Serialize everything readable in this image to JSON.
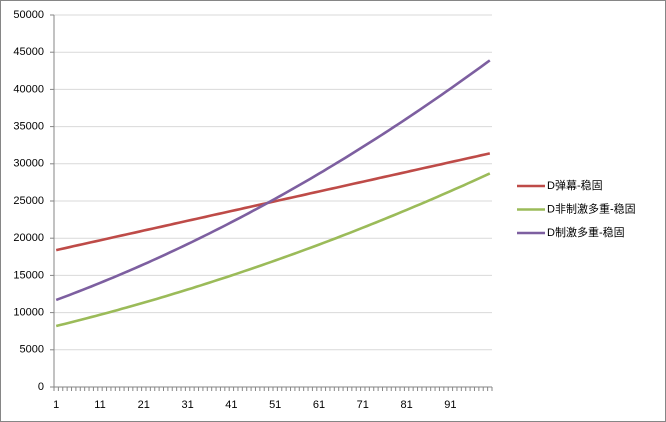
{
  "chart_data": {
    "type": "line",
    "categories": [
      1,
      null,
      null,
      null,
      null,
      null,
      null,
      null,
      null,
      null,
      11,
      null,
      null,
      null,
      null,
      null,
      null,
      null,
      null,
      null,
      21,
      null,
      null,
      null,
      null,
      null,
      null,
      null,
      null,
      null,
      31,
      null,
      null,
      null,
      null,
      null,
      null,
      null,
      null,
      null,
      41,
      null,
      null,
      null,
      null,
      null,
      null,
      null,
      null,
      null,
      51,
      null,
      null,
      null,
      null,
      null,
      null,
      null,
      null,
      null,
      61,
      null,
      null,
      null,
      null,
      null,
      null,
      null,
      null,
      null,
      71,
      null,
      null,
      null,
      null,
      null,
      null,
      null,
      null,
      null,
      81,
      null,
      null,
      null,
      null,
      null,
      null,
      null,
      null,
      null,
      91,
      null,
      null,
      null,
      null,
      null,
      null,
      null,
      null,
      null
    ],
    "series": [
      {
        "name": "D弹幕-稳固",
        "color": "#be4b48",
        "values": [
          18400,
          18530,
          18660,
          18790,
          18930,
          19060,
          19190,
          19320,
          19450,
          19580,
          19710,
          19840,
          19980,
          20110,
          20240,
          20370,
          20500,
          20630,
          20760,
          20890,
          21030,
          21160,
          21290,
          21420,
          21550,
          21680,
          21810,
          21950,
          22080,
          22210,
          22340,
          22470,
          22600,
          22730,
          22860,
          23000,
          23130,
          23260,
          23390,
          23520,
          23650,
          23780,
          23910,
          24050,
          24180,
          24310,
          24440,
          24570,
          24700,
          24830,
          24970,
          25100,
          25230,
          25360,
          25490,
          25620,
          25750,
          25880,
          26020,
          26150,
          26280,
          26410,
          26540,
          26670,
          26800,
          26930,
          27070,
          27200,
          27330,
          27460,
          27590,
          27720,
          27850,
          27980,
          28120,
          28250,
          28380,
          28510,
          28640,
          28770,
          28900,
          29040,
          29170,
          29300,
          29430,
          29560,
          29690,
          29820,
          29950,
          30090,
          30220,
          30350,
          30480,
          30610,
          30740,
          30870,
          31000,
          31140,
          31270,
          31400
        ]
      },
      {
        "name": "D非制激多重-稳固",
        "color": "#9bbb59",
        "values": [
          8200,
          8345,
          8490,
          8640,
          8790,
          8940,
          9090,
          9240,
          9400,
          9550,
          9710,
          9860,
          10020,
          10180,
          10340,
          10510,
          10670,
          10840,
          11000,
          11170,
          11340,
          11510,
          11680,
          11850,
          12030,
          12200,
          12380,
          12560,
          12740,
          12920,
          13100,
          13280,
          13470,
          13650,
          13840,
          14030,
          14220,
          14410,
          14600,
          14790,
          14990,
          15180,
          15380,
          15580,
          15780,
          15980,
          16180,
          16380,
          16590,
          16790,
          17000,
          17210,
          17420,
          17630,
          17840,
          18050,
          18270,
          18490,
          18700,
          18920,
          19140,
          19360,
          19580,
          19810,
          20030,
          20260,
          20490,
          20710,
          20940,
          21180,
          21410,
          21640,
          21880,
          22110,
          22350,
          22590,
          22830,
          23070,
          23310,
          23560,
          23800,
          24050,
          24300,
          24540,
          24790,
          25050,
          25300,
          25550,
          25810,
          26060,
          26320,
          26580,
          26840,
          27100,
          27370,
          27630,
          27900,
          28160,
          28430,
          28700
        ]
      },
      {
        "name": "D制激多重-稳固",
        "color": "#7d5fa0",
        "values": [
          11700,
          11920,
          12140,
          12360,
          12590,
          12820,
          13050,
          13280,
          13510,
          13750,
          13990,
          14230,
          14470,
          14710,
          14960,
          15210,
          15460,
          15720,
          15970,
          16230,
          16490,
          16750,
          17020,
          17280,
          17550,
          17820,
          18100,
          18370,
          18650,
          18930,
          19210,
          19490,
          19780,
          20070,
          20360,
          20650,
          20950,
          21240,
          21540,
          21840,
          22150,
          22450,
          22760,
          23070,
          23380,
          23700,
          24010,
          24330,
          24650,
          24980,
          25300,
          25630,
          25960,
          26290,
          26630,
          26960,
          27300,
          27640,
          27980,
          28330,
          28680,
          29020,
          29380,
          29730,
          30090,
          30440,
          30800,
          31170,
          31530,
          31900,
          32270,
          32640,
          33010,
          33380,
          33760,
          34140,
          34520,
          34910,
          35290,
          35680,
          36070,
          36470,
          36860,
          37260,
          37660,
          38060,
          38460,
          38870,
          39280,
          39690,
          40100,
          40510,
          40930,
          41350,
          41770,
          42190,
          42620,
          43040,
          43470,
          43900
        ]
      }
    ],
    "ylim": [
      0,
      50000
    ],
    "yticks": [
      0,
      5000,
      10000,
      15000,
      20000,
      25000,
      30000,
      35000,
      40000,
      45000,
      50000
    ],
    "grid": true,
    "legend": "right"
  }
}
